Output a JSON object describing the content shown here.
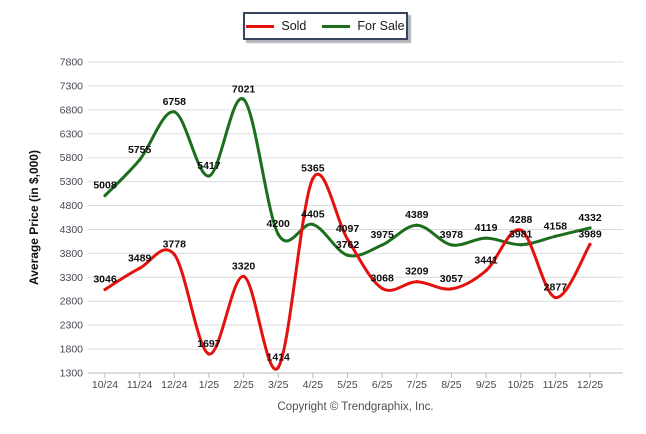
{
  "chart_data": {
    "type": "line",
    "title": "",
    "categories": [
      "10/24",
      "11/24",
      "12/24",
      "1/25",
      "2/25",
      "3/25",
      "4/25",
      "5/25",
      "6/25",
      "7/25",
      "8/25",
      "9/25",
      "10/25",
      "11/25",
      "12/25"
    ],
    "series": [
      {
        "name": "Sold",
        "color": "#e3120e",
        "values": [
          3046,
          3489,
          3778,
          1697,
          3320,
          1414,
          5365,
          4097,
          3068,
          3209,
          3057,
          3441,
          4288,
          2877,
          3989
        ]
      },
      {
        "name": "For Sale",
        "color": "#1c6e1c",
        "values": [
          5008,
          5755,
          6758,
          5417,
          7021,
          4200,
          4405,
          3762,
          3975,
          4389,
          3978,
          4119,
          3981,
          4158,
          4332
        ]
      }
    ],
    "xlabel": "",
    "ylabel": "Average Price (in $,000)",
    "ylim": [
      1300,
      7800
    ],
    "ytick_step": 500,
    "grid": true,
    "legend_position": "top-center",
    "colors": {
      "grid_line": "#dcdcdc",
      "axis_line": "#b7bcc1",
      "tick_label": "#474752",
      "data_label": "#0d0d0d",
      "legend_border": "#35455e"
    }
  },
  "footer": {
    "copyright": "Copyright © Trendgraphix, Inc."
  }
}
